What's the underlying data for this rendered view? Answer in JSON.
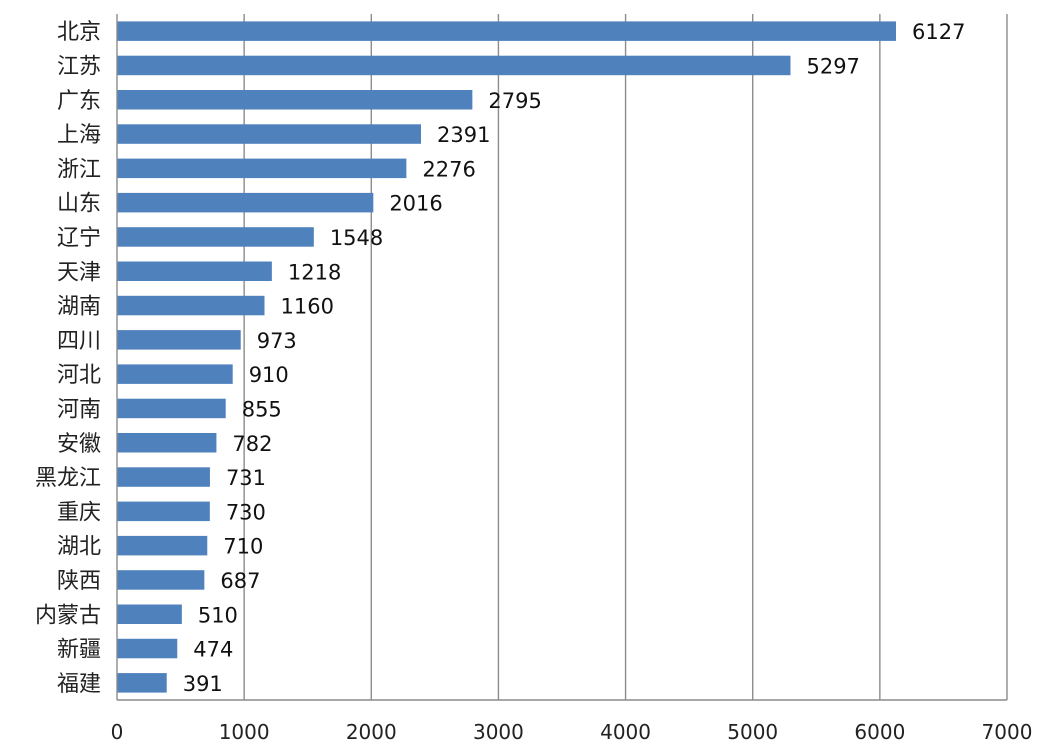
{
  "chart_data": {
    "type": "bar",
    "orientation": "horizontal",
    "title": "",
    "xlabel": "",
    "ylabel": "",
    "categories": [
      "北京",
      "江苏",
      "广东",
      "上海",
      "浙江",
      "山东",
      "辽宁",
      "天津",
      "湖南",
      "四川",
      "河北",
      "河南",
      "安徽",
      "黑龙江",
      "重庆",
      "湖北",
      "陕西",
      "内蒙古",
      "新疆",
      "福建"
    ],
    "values": [
      6127,
      5297,
      2795,
      2391,
      2276,
      2016,
      1548,
      1218,
      1160,
      973,
      910,
      855,
      782,
      731,
      730,
      710,
      687,
      510,
      474,
      391
    ],
    "xlim": [
      0,
      7000
    ],
    "xticks": [
      0,
      1000,
      2000,
      3000,
      4000,
      5000,
      6000,
      7000
    ],
    "grid": "vertical",
    "legend": "none",
    "data_labels": true,
    "bar_color": "#4f81bd"
  }
}
